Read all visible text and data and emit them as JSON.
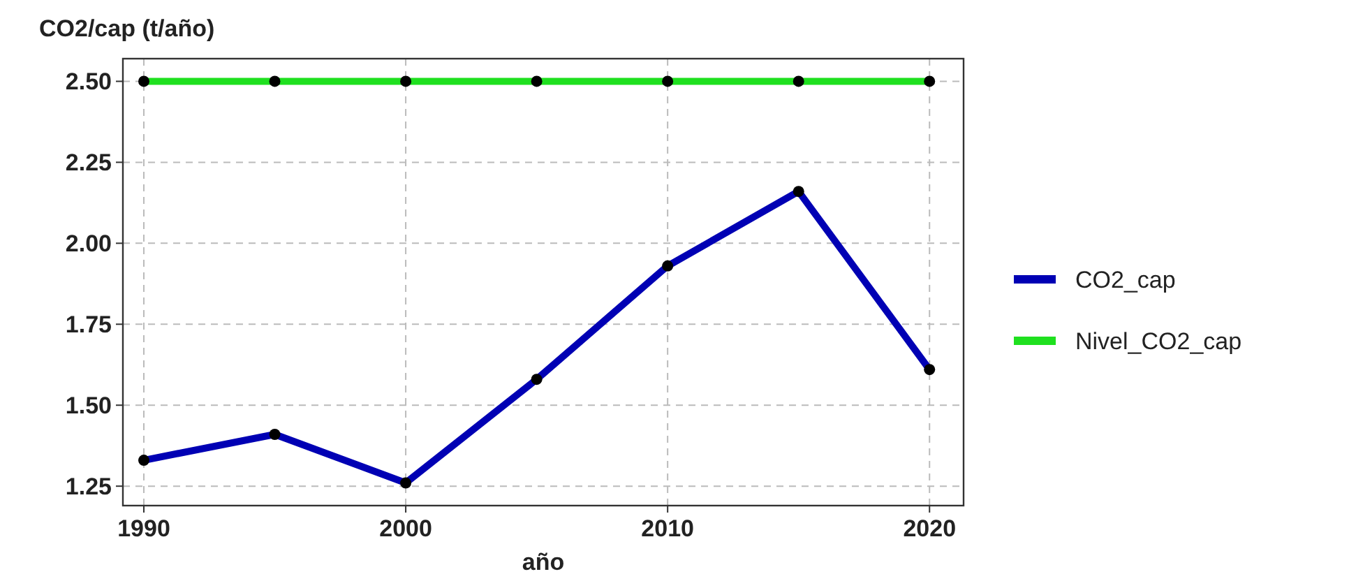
{
  "chart_data": {
    "type": "line",
    "ylabel": "CO2/cap (t/año)",
    "xlabel": "año",
    "x": [
      1990,
      1995,
      2000,
      2005,
      2010,
      2015,
      2020
    ],
    "series": [
      {
        "name": "CO2_cap",
        "color": "#0000b4",
        "values": [
          1.33,
          1.41,
          1.26,
          1.58,
          1.93,
          2.16,
          1.61
        ]
      },
      {
        "name": "Nivel_CO2_cap",
        "color": "#1fe01f",
        "values": [
          2.5,
          2.5,
          2.5,
          2.5,
          2.5,
          2.5,
          2.5
        ]
      }
    ],
    "xlim": [
      1989.2,
      2021.3
    ],
    "ylim": [
      1.19,
      2.57
    ],
    "xticks": [
      1990,
      2000,
      2010,
      2020
    ],
    "yticks": [
      {
        "value": 1.25,
        "label": "1.25"
      },
      {
        "value": 1.5,
        "label": "1.50"
      },
      {
        "value": 1.75,
        "label": "1.75"
      },
      {
        "value": 2,
        "label": "2.00"
      },
      {
        "value": 2.25,
        "label": "2.25"
      },
      {
        "value": 2.5,
        "label": "2.50"
      }
    ],
    "grid": true,
    "legend": "right",
    "marker": "circle",
    "line_style": "solid"
  }
}
